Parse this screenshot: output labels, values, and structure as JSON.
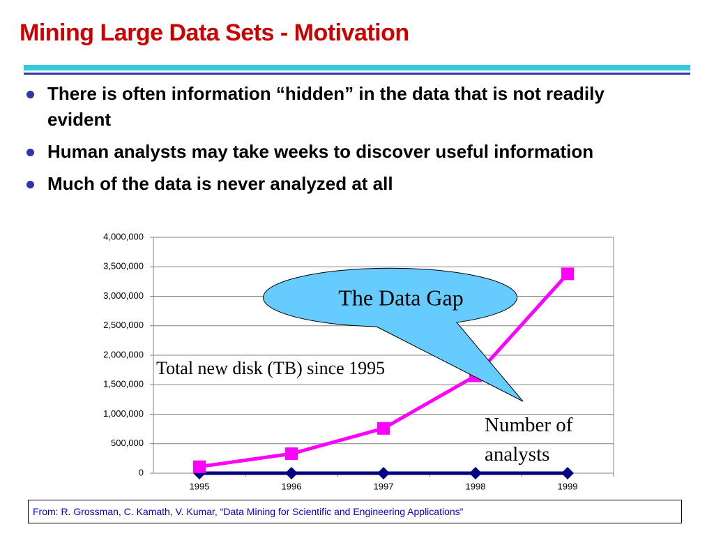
{
  "title": "Mining Large Data Sets - Motivation",
  "bullets": [
    "There is often information “hidden” in the data that is not readily evident",
    "Human analysts may take weeks to discover useful information",
    "Much of the data is never analyzed at all"
  ],
  "footer": "From: R. Grossman, C. Kamath, V. Kumar, “Data Mining for Scientific and Engineering Applications”",
  "chart_data": {
    "type": "line",
    "annotation": "The Data Gap",
    "categories": [
      "1995",
      "1996",
      "1997",
      "1998",
      "1999"
    ],
    "series": [
      {
        "name": "Total new disk (TB) since 1995",
        "color": "#ff00ff",
        "marker": "square",
        "values": [
          110000,
          330000,
          760000,
          1650000,
          3380000
        ]
      },
      {
        "name": "Number of analysts",
        "color": "#000080",
        "marker": "diamond",
        "values": [
          0,
          0,
          0,
          0,
          0
        ]
      }
    ],
    "ylim": [
      0,
      4000000
    ],
    "yticks": [
      0,
      {
        "value": 500000,
        "label": "500,000"
      },
      {
        "value": 1000000,
        "label": "1,000,000"
      },
      {
        "value": 1500000,
        "label": "1,500,000"
      },
      {
        "value": 2000000,
        "label": "2,000,000"
      },
      {
        "value": 2500000,
        "label": "2,500,000"
      },
      {
        "value": 3000000,
        "label": "3,000,000"
      },
      {
        "value": 3500000,
        "label": "3,500,000"
      },
      {
        "value": 4000000,
        "label": "4,000,000"
      }
    ],
    "grid": true
  }
}
